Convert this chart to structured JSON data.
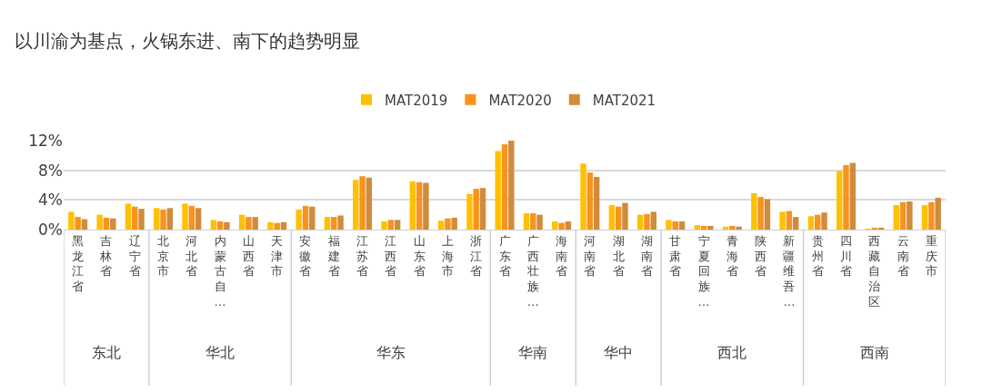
{
  "chart_data": {
    "type": "bar",
    "title": "以川渝为基点，火锅东进、南下的趋势明显",
    "categories": [
      "黑龙江省",
      "吉林省",
      "辽宁省",
      "北京市",
      "河北省",
      "内蒙古自…",
      "山西省",
      "天津市",
      "安徽省",
      "福建省",
      "江苏省",
      "江西省",
      "山东省",
      "上海市",
      "浙江省",
      "广东省",
      "广西壮族…",
      "海南省",
      "河南省",
      "湖北省",
      "湖南省",
      "甘肃省",
      "宁夏回族…",
      "青海省",
      "陕西省",
      "新疆维吾…",
      "贵州省",
      "四川省",
      "西藏自治区",
      "云南省",
      "重庆市"
    ],
    "series": [
      {
        "name": "MAT2019",
        "color": "#ffc000",
        "values": [
          2.4,
          2.0,
          3.5,
          2.9,
          3.5,
          1.3,
          2.0,
          1.0,
          2.7,
          1.7,
          6.7,
          1.1,
          6.5,
          1.2,
          4.8,
          10.6,
          2.2,
          1.1,
          8.9,
          3.3,
          2.0,
          1.3,
          0.6,
          0.4,
          4.9,
          2.4,
          1.8,
          7.9,
          0.1,
          3.3,
          3.3
        ]
      },
      {
        "name": "MAT2020",
        "color": "#f7931e",
        "values": [
          1.7,
          1.6,
          3.1,
          2.7,
          3.2,
          1.1,
          1.7,
          0.9,
          3.2,
          1.7,
          7.2,
          1.3,
          6.4,
          1.5,
          5.5,
          11.5,
          2.2,
          0.9,
          7.7,
          3.1,
          2.1,
          1.1,
          0.5,
          0.5,
          4.4,
          2.5,
          2.0,
          8.7,
          0.2,
          3.7,
          3.7
        ]
      },
      {
        "name": "MAT2021",
        "color": "#d08b3c",
        "values": [
          1.4,
          1.5,
          2.8,
          2.9,
          2.9,
          1.0,
          1.7,
          1.0,
          3.1,
          1.9,
          7.0,
          1.3,
          6.3,
          1.6,
          5.6,
          12.0,
          2.0,
          1.1,
          7.1,
          3.6,
          2.4,
          1.1,
          0.5,
          0.4,
          4.1,
          1.7,
          2.3,
          9.0,
          0.2,
          3.8,
          4.3
        ]
      }
    ],
    "ylim": [
      0,
      12
    ],
    "yticks": [
      {
        "value": 0,
        "label": "0%"
      },
      {
        "value": 4,
        "label": "4%"
      },
      {
        "value": 8,
        "label": "8%"
      },
      {
        "value": 12,
        "label": "12%"
      }
    ],
    "grid": "y",
    "legend": "top",
    "annotations": [
      "东北",
      "华北",
      "华东",
      "华南",
      "华中",
      "西北",
      "西南"
    ]
  }
}
